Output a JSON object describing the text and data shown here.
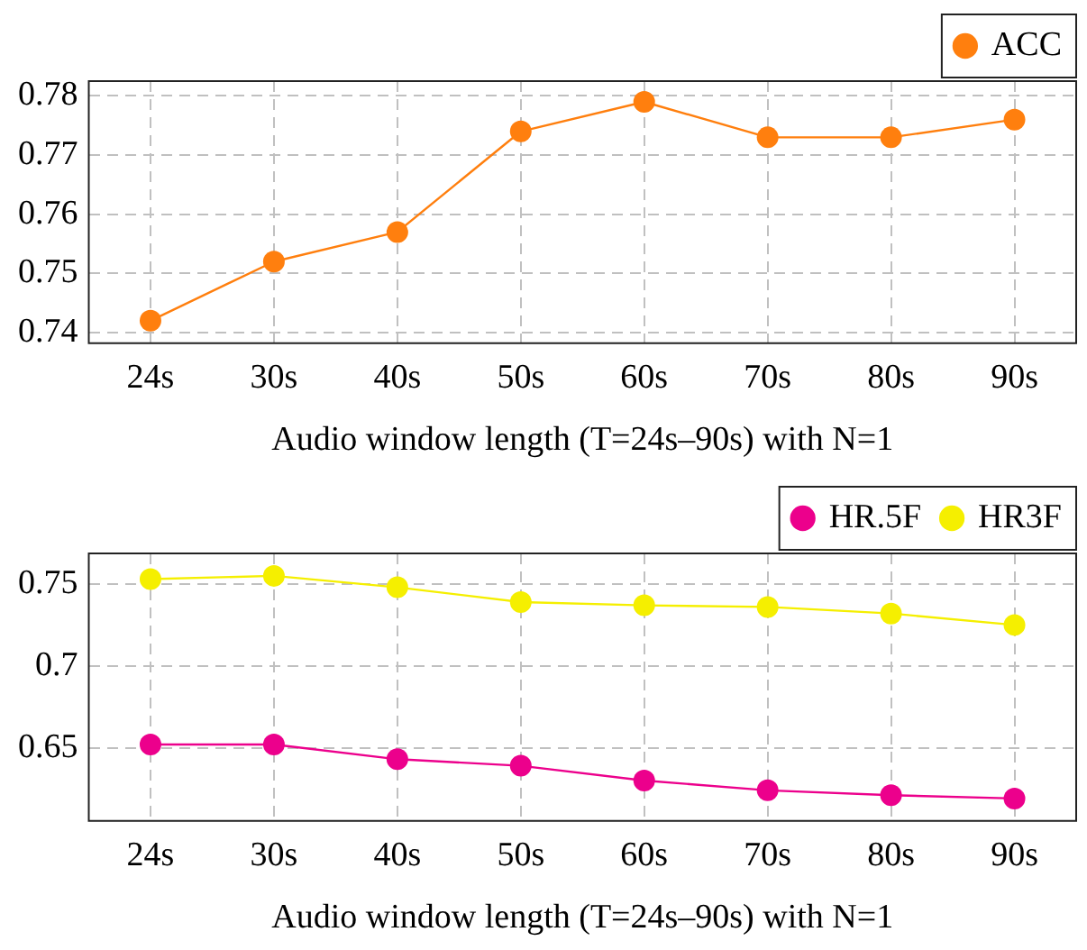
{
  "chart_data": [
    {
      "type": "line",
      "xlabel": "Audio window length (T=24s–90s) with N=1",
      "categories": [
        "24s",
        "30s",
        "40s",
        "50s",
        "60s",
        "70s",
        "80s",
        "90s"
      ],
      "series": [
        {
          "name": "ACC",
          "color": "#ff7f0e",
          "values": [
            0.742,
            0.752,
            0.757,
            0.774,
            0.779,
            0.773,
            0.773,
            0.776
          ]
        }
      ],
      "ylim": [
        0.7382,
        0.7825
      ],
      "yticks": [
        {
          "value": 0.74,
          "label": "0.74"
        },
        {
          "value": 0.75,
          "label": "0.75"
        },
        {
          "value": 0.76,
          "label": "0.76"
        },
        {
          "value": 0.77,
          "label": "0.77"
        },
        {
          "value": 0.78,
          "label": "0.78"
        }
      ],
      "grid": true,
      "legend": "top right",
      "marker": "circle",
      "line_style": "solid"
    },
    {
      "type": "line",
      "xlabel": "Audio window length (T=24s–90s) with N=1",
      "categories": [
        "24s",
        "30s",
        "40s",
        "50s",
        "60s",
        "70s",
        "80s",
        "90s"
      ],
      "series": [
        {
          "name": "HR.5F",
          "color": "#ec008c",
          "values": [
            0.652,
            0.652,
            0.643,
            0.639,
            0.63,
            0.624,
            0.621,
            0.619
          ]
        },
        {
          "name": "HR3F",
          "color": "#f5ef00",
          "values": [
            0.753,
            0.755,
            0.748,
            0.739,
            0.737,
            0.736,
            0.732,
            0.725
          ]
        }
      ],
      "ylim": [
        0.6053,
        0.7687
      ],
      "yticks": [
        {
          "value": 0.65,
          "label": "0.65"
        },
        {
          "value": 0.7,
          "label": "0.7"
        },
        {
          "value": 0.75,
          "label": "0.75"
        }
      ],
      "grid": true,
      "legend": "top right",
      "marker": "circle",
      "line_style": "solid"
    }
  ]
}
